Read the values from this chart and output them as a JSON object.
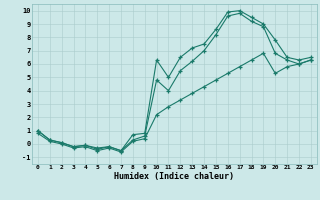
{
  "xlabel": "Humidex (Indice chaleur)",
  "background_color": "#cce8e8",
  "grid_color": "#aacccc",
  "line_color": "#1a7a6a",
  "marker": "+",
  "xlim": [
    -0.5,
    23.5
  ],
  "ylim": [
    -1.5,
    10.5
  ],
  "xticks": [
    0,
    1,
    2,
    3,
    4,
    5,
    6,
    7,
    8,
    9,
    10,
    11,
    12,
    13,
    14,
    15,
    16,
    17,
    18,
    19,
    20,
    21,
    22,
    23
  ],
  "yticks": [
    -1,
    0,
    1,
    2,
    3,
    4,
    5,
    6,
    7,
    8,
    9,
    10
  ],
  "line1_x": [
    0,
    1,
    2,
    3,
    4,
    5,
    6,
    7,
    8,
    9,
    10,
    11,
    12,
    13,
    14,
    15,
    16,
    17,
    18,
    19,
    20,
    21,
    22,
    23
  ],
  "line1_y": [
    1.0,
    0.3,
    0.1,
    -0.2,
    -0.1,
    -0.3,
    -0.2,
    -0.5,
    0.7,
    0.8,
    6.3,
    5.0,
    6.5,
    7.2,
    7.5,
    8.6,
    9.9,
    10.0,
    9.5,
    9.0,
    7.8,
    6.5,
    6.3,
    6.5
  ],
  "line2_x": [
    0,
    1,
    2,
    3,
    4,
    5,
    6,
    7,
    8,
    9,
    10,
    11,
    12,
    13,
    14,
    15,
    16,
    17,
    18,
    19,
    20,
    21,
    22,
    23
  ],
  "line2_y": [
    1.0,
    0.3,
    0.1,
    -0.2,
    -0.1,
    -0.4,
    -0.2,
    -0.5,
    0.3,
    0.6,
    4.8,
    4.0,
    5.5,
    6.2,
    7.0,
    8.2,
    9.6,
    9.8,
    9.2,
    8.8,
    6.8,
    6.3,
    6.0,
    6.3
  ],
  "line3_x": [
    0,
    1,
    2,
    3,
    4,
    5,
    6,
    7,
    8,
    9,
    10,
    11,
    12,
    13,
    14,
    15,
    16,
    17,
    18,
    19,
    20,
    21,
    22,
    23
  ],
  "line3_y": [
    0.8,
    0.2,
    0.0,
    -0.3,
    -0.2,
    -0.5,
    -0.3,
    -0.6,
    0.2,
    0.4,
    2.2,
    2.8,
    3.3,
    3.8,
    4.3,
    4.8,
    5.3,
    5.8,
    6.3,
    6.8,
    5.3,
    5.8,
    6.0,
    6.3
  ]
}
